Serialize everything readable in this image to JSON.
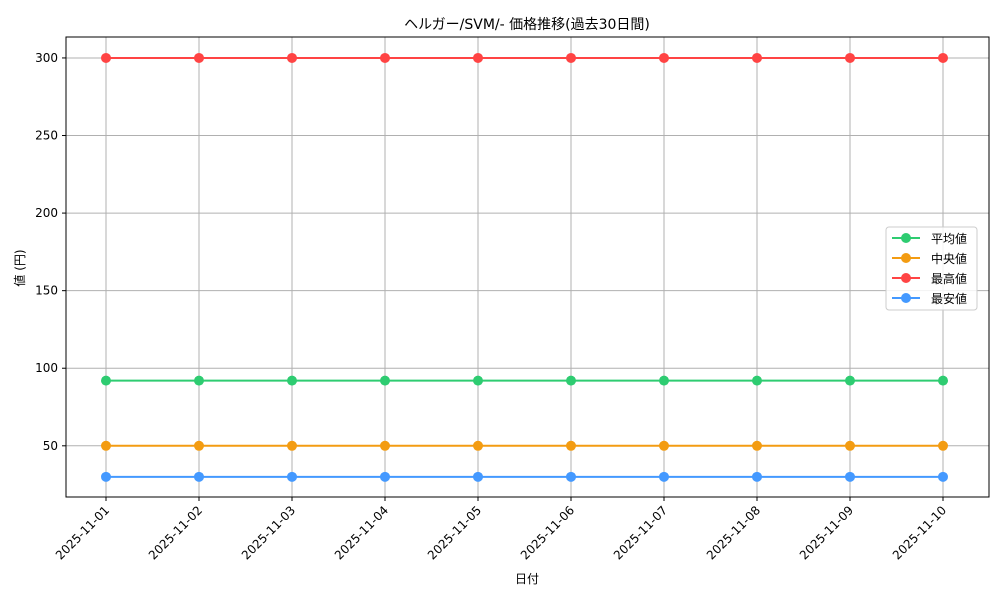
{
  "chart_data": {
    "type": "line",
    "title": "ヘルガー/SVM/- 価格推移(過去30日間)",
    "xlabel": "日付",
    "ylabel": "値 (円)",
    "categories": [
      "2025-11-01",
      "2025-11-02",
      "2025-11-03",
      "2025-11-04",
      "2025-11-05",
      "2025-11-06",
      "2025-11-07",
      "2025-11-08",
      "2025-11-09",
      "2025-11-10"
    ],
    "series": [
      {
        "name": "平均値",
        "color": "#2ecc71",
        "values": [
          92,
          92,
          92,
          92,
          92,
          92,
          92,
          92,
          92,
          92
        ]
      },
      {
        "name": "中央値",
        "color": "#f39c12",
        "values": [
          50,
          50,
          50,
          50,
          50,
          50,
          50,
          50,
          50,
          50
        ]
      },
      {
        "name": "最高値",
        "color": "#ff4444",
        "values": [
          300,
          300,
          300,
          300,
          300,
          300,
          300,
          300,
          300,
          300
        ]
      },
      {
        "name": "最安値",
        "color": "#4499ff",
        "values": [
          30,
          30,
          30,
          30,
          30,
          30,
          30,
          30,
          30,
          30
        ]
      }
    ],
    "yticks": [
      50,
      100,
      150,
      200,
      250,
      300
    ],
    "ylim": [
      17,
      313.5
    ],
    "grid": true,
    "legend_position": "center right",
    "marker": "circle"
  }
}
